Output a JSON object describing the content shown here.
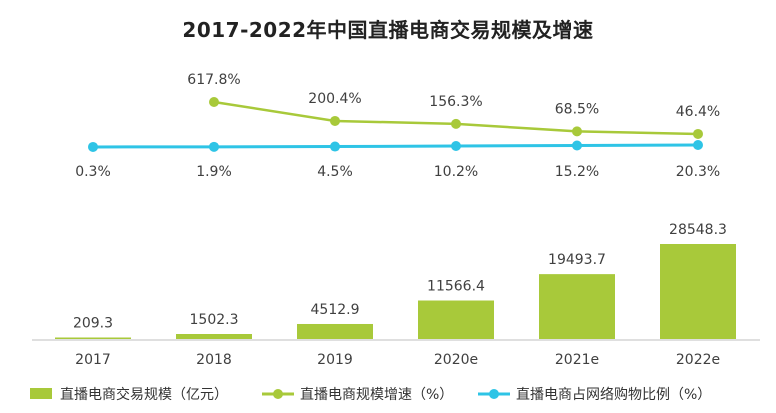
{
  "chart_data": {
    "title": "2017-2022年中国直播电商交易规模及增速",
    "categories": [
      "2017",
      "2018",
      "2019",
      "2020e",
      "2021e",
      "2022e"
    ],
    "bar_series": {
      "name": "直播电商交易规模（亿元）",
      "type": "bar",
      "values": [
        209.3,
        1502.3,
        4512.9,
        11566.4,
        19493.7,
        28548.3
      ],
      "labels": [
        "209.3",
        "1502.3",
        "4512.9",
        "11566.4",
        "19493.7",
        "28548.3"
      ],
      "color": "#a8c93a"
    },
    "line_series": [
      {
        "name": "直播电商规模增速（%）",
        "type": "line",
        "values": [
          null,
          617.8,
          200.4,
          156.3,
          68.5,
          46.4
        ],
        "labels": [
          "",
          "617.8%",
          "200.4%",
          "156.3%",
          "68.5%",
          "46.4%"
        ],
        "color": "#a8c93a"
      },
      {
        "name": "直播电商占网络购物比例（%）",
        "type": "line",
        "values": [
          0.3,
          1.9,
          4.5,
          10.2,
          15.2,
          20.3
        ],
        "labels": [
          "0.3%",
          "1.9%",
          "4.5%",
          "10.2%",
          "15.2%",
          "20.3%"
        ],
        "color": "#2ec4e6"
      }
    ],
    "legend_position": "bottom",
    "grid": false
  }
}
